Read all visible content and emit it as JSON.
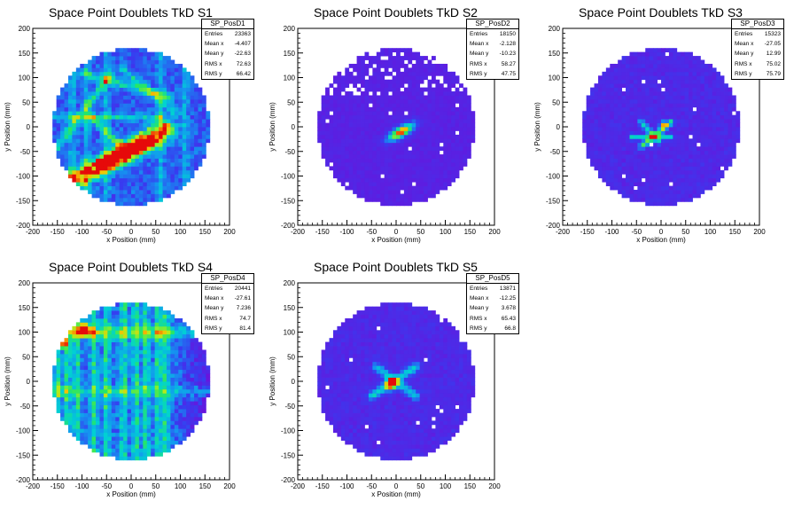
{
  "chart_data": [
    {
      "type": "heatmap",
      "title": "Space Point Doublets TkD S1",
      "xlabel": "x Position (mm)",
      "ylabel": "y Position (mm)",
      "xlim": [
        -200,
        200
      ],
      "ylim": [
        -200,
        200
      ],
      "xticks": [
        "-200",
        "-150",
        "-100",
        "-50",
        "0",
        "50",
        "100",
        "150",
        "200"
      ],
      "yticks": [
        "-200",
        "-150",
        "-100",
        "-50",
        "0",
        "50",
        "100",
        "150",
        "200"
      ],
      "stats": {
        "name": "SP_PosD1",
        "rows": [
          [
            "Entries",
            "23363"
          ],
          [
            "Mean x",
            "-4.407"
          ],
          [
            "Mean y",
            "-22.63"
          ],
          [
            "RMS x",
            "72.63"
          ],
          [
            "RMS y",
            "66.42"
          ]
        ]
      },
      "pattern": "tracks"
    },
    {
      "type": "heatmap",
      "title": "Space Point Doublets TkD S2",
      "xlabel": "x Position (mm)",
      "ylabel": "y Position (mm)",
      "xlim": [
        -200,
        200
      ],
      "ylim": [
        -200,
        200
      ],
      "xticks": [
        "-200",
        "-150",
        "-100",
        "-50",
        "0",
        "50",
        "100",
        "150",
        "200"
      ],
      "yticks": [
        "-200",
        "-150",
        "-100",
        "-50",
        "0",
        "50",
        "100",
        "150",
        "200"
      ],
      "stats": {
        "name": "SP_PosD2",
        "rows": [
          [
            "Entries",
            "18150"
          ],
          [
            "Mean x",
            "-2.128"
          ],
          [
            "Mean y",
            "-10.23"
          ],
          [
            "RMS x",
            "58.27"
          ],
          [
            "RMS y",
            "47.75"
          ]
        ]
      },
      "pattern": "blob"
    },
    {
      "type": "heatmap",
      "title": "Space Point Doublets TkD S3",
      "xlabel": "x Position (mm)",
      "ylabel": "y Position (mm)",
      "xlim": [
        -200,
        200
      ],
      "ylim": [
        -200,
        200
      ],
      "xticks": [
        "-200",
        "-150",
        "-100",
        "-50",
        "0",
        "50",
        "100",
        "150",
        "200"
      ],
      "yticks": [
        "-200",
        "-150",
        "-100",
        "-50",
        "0",
        "50",
        "100",
        "150",
        "200"
      ],
      "stats": {
        "name": "SP_PosD3",
        "rows": [
          [
            "Entries",
            "15323"
          ],
          [
            "Mean x",
            "-27.05"
          ],
          [
            "Mean y",
            "12.99"
          ],
          [
            "RMS x",
            "75.02"
          ],
          [
            "RMS y",
            "75.79"
          ]
        ]
      },
      "pattern": "star"
    },
    {
      "type": "heatmap",
      "title": "Space Point Doublets TkD S4",
      "xlabel": "x Position (mm)",
      "ylabel": "y Position (mm)",
      "xlim": [
        -200,
        200
      ],
      "ylim": [
        -200,
        200
      ],
      "xticks": [
        "-200",
        "-150",
        "-100",
        "-50",
        "0",
        "50",
        "100",
        "150",
        "200"
      ],
      "yticks": [
        "-200",
        "-150",
        "-100",
        "-50",
        "0",
        "50",
        "100",
        "150",
        "200"
      ],
      "stats": {
        "name": "SP_PosD4",
        "rows": [
          [
            "Entries",
            "20441"
          ],
          [
            "Mean x",
            "-27.61"
          ],
          [
            "Mean y",
            "7.236"
          ],
          [
            "RMS x",
            "74.7"
          ],
          [
            "RMS y",
            "81.4"
          ]
        ]
      },
      "pattern": "stripes"
    },
    {
      "type": "heatmap",
      "title": "Space Point Doublets TkD S5",
      "xlabel": "x Position (mm)",
      "ylabel": "y Position (mm)",
      "xlim": [
        -200,
        200
      ],
      "ylim": [
        -200,
        200
      ],
      "xticks": [
        "-200",
        "-150",
        "-100",
        "-50",
        "0",
        "50",
        "100",
        "150",
        "200"
      ],
      "yticks": [
        "-200",
        "-150",
        "-100",
        "-50",
        "0",
        "50",
        "100",
        "150",
        "200"
      ],
      "stats": {
        "name": "SP_PosD5",
        "rows": [
          [
            "Entries",
            "13871"
          ],
          [
            "Mean x",
            "-12.25"
          ],
          [
            "Mean y",
            "3.678"
          ],
          [
            "RMS x",
            "65.43"
          ],
          [
            "RMS y",
            "66.8"
          ]
        ]
      },
      "pattern": "cross"
    }
  ]
}
